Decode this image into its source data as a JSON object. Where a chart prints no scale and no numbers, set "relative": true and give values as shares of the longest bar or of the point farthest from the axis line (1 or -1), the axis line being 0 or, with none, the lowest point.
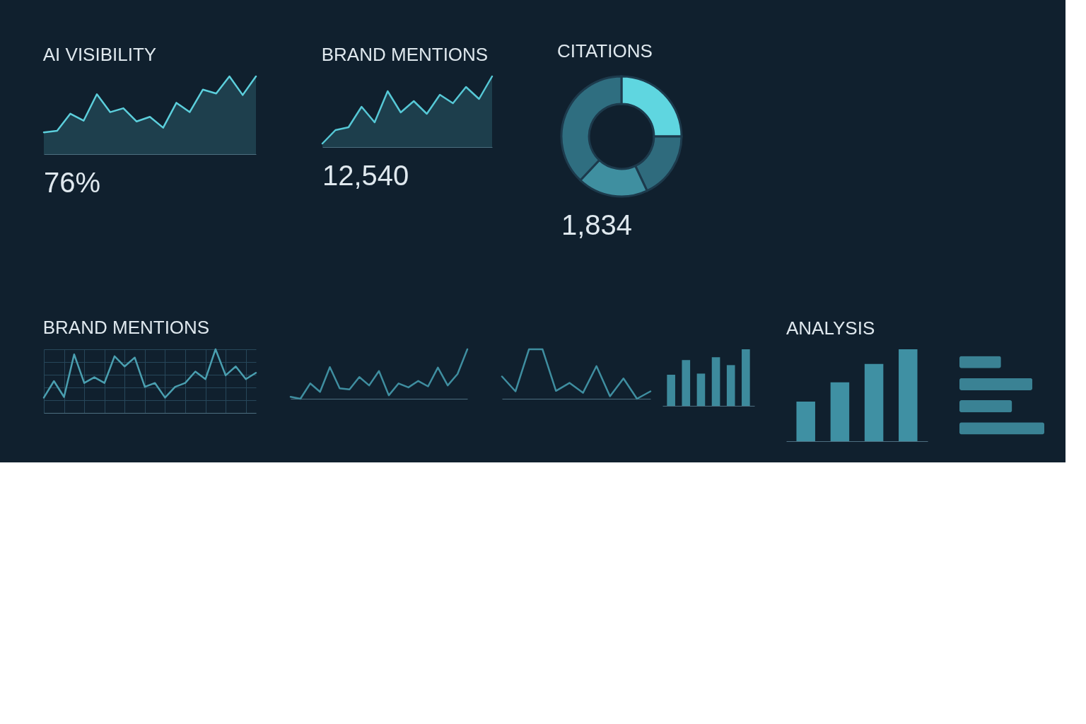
{
  "chart_data": [
    {
      "type": "area",
      "title": "AI VISIBILITY",
      "relative": true,
      "categories": [
        null,
        null,
        null,
        null,
        null,
        null,
        null,
        null,
        null,
        null,
        null,
        null,
        null,
        null,
        null,
        null,
        null
      ],
      "annotations": [
        "76%"
      ],
      "series": [
        {
          "color": "#5ccfdc",
          "values": [
            0.28,
            0.3,
            0.52,
            0.43,
            0.77,
            0.54,
            0.59,
            0.42,
            0.48,
            0.34,
            0.66,
            0.54,
            0.83,
            0.78,
            1,
            0.76,
            1
          ]
        }
      ]
    },
    {
      "type": "area",
      "title": "BRAND MENTIONS",
      "relative": true,
      "categories": [
        null,
        null,
        null,
        null,
        null,
        null,
        null,
        null,
        null,
        null,
        null,
        null,
        null,
        null
      ],
      "annotations": [
        "12,540"
      ],
      "series": [
        {
          "color": "#56c8d6",
          "values": [
            0.05,
            0.24,
            0.28,
            0.57,
            0.35,
            0.79,
            0.49,
            0.65,
            0.47,
            0.74,
            0.62,
            0.85,
            0.68,
            1
          ]
        }
      ]
    },
    {
      "type": "donut",
      "title": "CITATIONS",
      "categories": [
        null,
        null,
        null,
        null
      ],
      "values": [
        25,
        18,
        19,
        38
      ],
      "colors": [
        "#5fd6e0",
        "#2f6b7d",
        "#3f8fa0",
        "#2f6e80"
      ],
      "annotations": [
        "1,834"
      ]
    },
    {
      "type": "line",
      "title": "BRAND MENTIONS",
      "relative": true,
      "grid": true,
      "categories": [
        null,
        null,
        null,
        null,
        null,
        null,
        null,
        null,
        null,
        null,
        null,
        null,
        null,
        null,
        null,
        null,
        null,
        null,
        null,
        null,
        null,
        null
      ],
      "series": [
        {
          "color": "#4a9fb0",
          "values": [
            0.24,
            0.5,
            0.25,
            0.92,
            0.47,
            0.56,
            0.47,
            0.89,
            0.73,
            0.87,
            0.41,
            0.47,
            0.24,
            0.41,
            0.47,
            0.65,
            0.53,
            1,
            0.59,
            0.73,
            0.53,
            0.63
          ]
        }
      ]
    },
    {
      "type": "line",
      "relative": true,
      "categories": [
        null,
        null,
        null,
        null,
        null,
        null,
        null,
        null,
        null,
        null,
        null,
        null,
        null,
        null,
        null,
        null,
        null,
        null,
        null
      ],
      "series": [
        {
          "color": "#3f8ea0",
          "values": [
            0.04,
            0,
            0.31,
            0.14,
            0.64,
            0.21,
            0.19,
            0.44,
            0.27,
            0.56,
            0.07,
            0.31,
            0.23,
            0.36,
            0.25,
            0.63,
            0.27,
            0.5,
            1
          ]
        }
      ]
    },
    {
      "type": "line",
      "relative": true,
      "categories": [
        null,
        null,
        null,
        null,
        null,
        null,
        null,
        null,
        null,
        null,
        null,
        null
      ],
      "series": [
        {
          "color": "#3f8ea0",
          "values": [
            0.45,
            0.15,
            1,
            1,
            0.16,
            0.32,
            0.12,
            0.66,
            0.05,
            0.41,
            0,
            0.15
          ]
        }
      ]
    },
    {
      "type": "bar",
      "relative": true,
      "categories": [
        null,
        null,
        null,
        null,
        null,
        null
      ],
      "series": [
        {
          "color": "#3d8a9c",
          "values": [
            0.55,
            0.81,
            0.57,
            0.86,
            0.72,
            1
          ]
        }
      ]
    },
    {
      "type": "bar",
      "title": "ANALYSIS",
      "relative": true,
      "categories": [
        null,
        null,
        null,
        null
      ],
      "series": [
        {
          "color": "#3f90a3",
          "values": [
            0.43,
            0.64,
            0.84,
            1
          ]
        }
      ]
    },
    {
      "type": "bar",
      "orientation": "horizontal",
      "relative": true,
      "categories": [
        null,
        null,
        null,
        null
      ],
      "series": [
        {
          "color": "#3a8294",
          "values": [
            0.49,
            0.86,
            0.62,
            1
          ]
        }
      ]
    }
  ]
}
